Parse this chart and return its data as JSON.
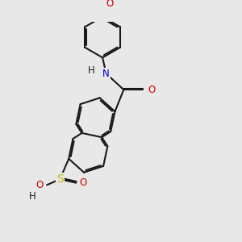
{
  "background_color": "#e8e8e8",
  "bond_color": "#1a1a1a",
  "atom_colors": {
    "N": "#0000cd",
    "O": "#cc0000",
    "S": "#bbbb00",
    "H": "#1a1a1a"
  },
  "font_size": 8.5,
  "fig_width": 3.0,
  "fig_height": 3.0,
  "dpi": 100
}
